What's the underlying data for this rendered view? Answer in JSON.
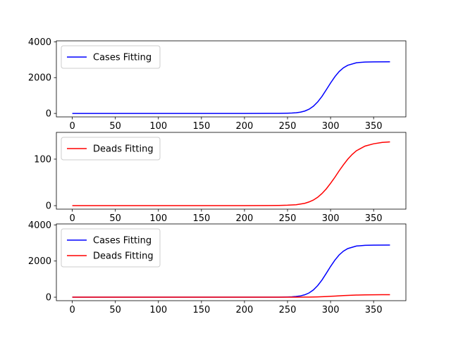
{
  "chart_data": [
    {
      "type": "line",
      "title": "",
      "xlabel": "",
      "ylabel": "",
      "xlim": [
        -18.5,
        387.5
      ],
      "ylim": [
        -193,
        4053
      ],
      "xticks": [
        0,
        50,
        100,
        150,
        200,
        250,
        300,
        350
      ],
      "yticks": [
        0,
        2000,
        4000
      ],
      "grid": false,
      "legend_position": "top-left",
      "series": [
        {
          "name": "Cases Fitting",
          "color": "#0000ff",
          "x": [
            0,
            200,
            240,
            250,
            255,
            260,
            265,
            270,
            275,
            280,
            285,
            290,
            295,
            300,
            305,
            310,
            315,
            320,
            330,
            340,
            350,
            369
          ],
          "y": [
            0,
            0,
            4,
            12,
            21,
            39,
            72,
            132,
            235,
            400,
            640,
            950,
            1320,
            1700,
            2050,
            2340,
            2550,
            2690,
            2830,
            2870,
            2880,
            2885
          ]
        }
      ]
    },
    {
      "type": "line",
      "title": "",
      "xlabel": "",
      "ylabel": "",
      "xlim": [
        -18.5,
        387.5
      ],
      "ylim": [
        -7.5,
        157.5
      ],
      "xticks": [
        0,
        50,
        100,
        150,
        200,
        250,
        300,
        350
      ],
      "yticks": [
        0,
        100
      ],
      "grid": false,
      "legend_position": "top-left",
      "series": [
        {
          "name": "Deads Fitting",
          "color": "#ff0000",
          "x": [
            0,
            200,
            240,
            250,
            260,
            270,
            275,
            280,
            285,
            290,
            295,
            300,
            305,
            310,
            315,
            320,
            325,
            330,
            340,
            350,
            360,
            369
          ],
          "y": [
            0,
            0,
            0.5,
            1,
            2,
            5,
            8,
            12,
            18,
            26,
            36,
            48,
            61,
            75,
            88,
            100,
            110,
            118,
            128,
            133,
            136,
            137
          ]
        }
      ]
    },
    {
      "type": "line",
      "title": "",
      "xlabel": "",
      "ylabel": "",
      "xlim": [
        -18.5,
        387.5
      ],
      "ylim": [
        -193,
        4053
      ],
      "xticks": [
        0,
        50,
        100,
        150,
        200,
        250,
        300,
        350
      ],
      "yticks": [
        0,
        2000,
        4000
      ],
      "grid": false,
      "legend_position": "top-left",
      "series": [
        {
          "name": "Cases Fitting",
          "color": "#0000ff",
          "x": [
            0,
            200,
            240,
            250,
            255,
            260,
            265,
            270,
            275,
            280,
            285,
            290,
            295,
            300,
            305,
            310,
            315,
            320,
            330,
            340,
            350,
            369
          ],
          "y": [
            0,
            0,
            4,
            12,
            21,
            39,
            72,
            132,
            235,
            400,
            640,
            950,
            1320,
            1700,
            2050,
            2340,
            2550,
            2690,
            2830,
            2870,
            2880,
            2885
          ]
        },
        {
          "name": "Deads Fitting",
          "color": "#ff0000",
          "x": [
            0,
            200,
            240,
            250,
            260,
            270,
            275,
            280,
            285,
            290,
            295,
            300,
            305,
            310,
            315,
            320,
            325,
            330,
            340,
            350,
            360,
            369
          ],
          "y": [
            0,
            0,
            0.5,
            1,
            2,
            5,
            8,
            12,
            18,
            26,
            36,
            48,
            61,
            75,
            88,
            100,
            110,
            118,
            128,
            133,
            136,
            137
          ]
        }
      ]
    }
  ]
}
